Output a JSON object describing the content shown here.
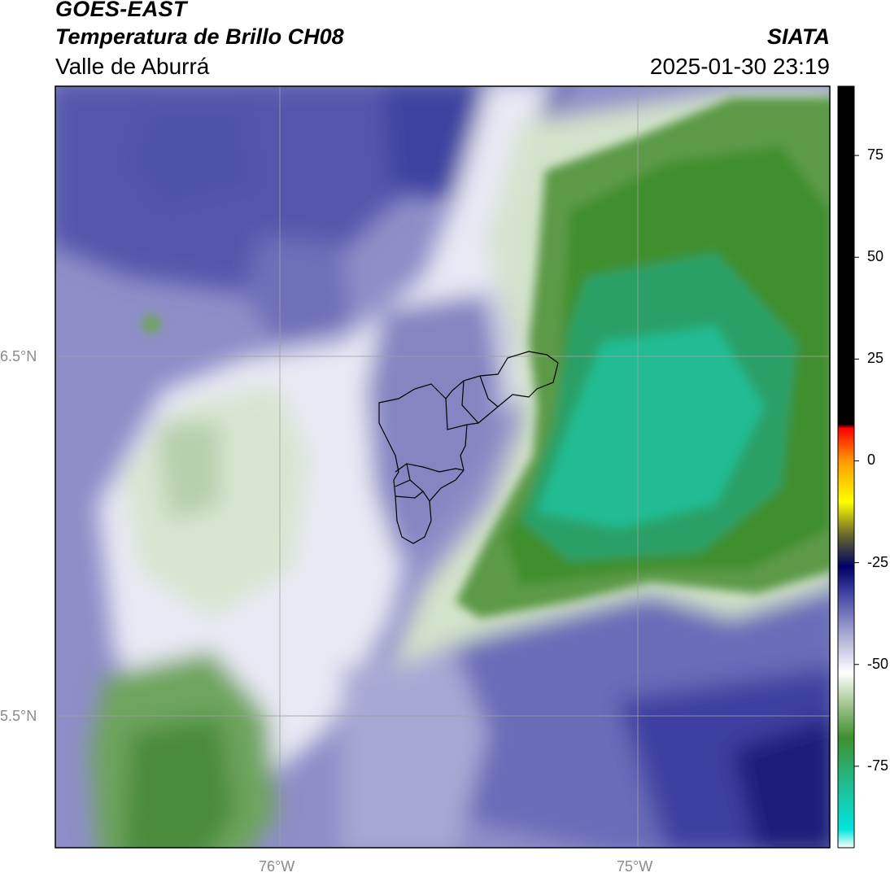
{
  "header": {
    "satellite": "GOES-EAST",
    "product": "Temperatura de Brillo CH08",
    "region": "Valle de Aburrá",
    "organization": "SIATA",
    "timestamp": "2025-01-30 23:19"
  },
  "axes": {
    "lat_ticks": [
      "6.5°N",
      "5.5°N"
    ],
    "lon_ticks": [
      "76°W",
      "75°W"
    ]
  },
  "colorbar": {
    "ticks": [
      "75",
      "50",
      "25",
      "0",
      "-25",
      "-50",
      "-75"
    ],
    "tick_values": [
      75,
      50,
      25,
      0,
      -25,
      -50,
      -75
    ],
    "range": [
      -95,
      92
    ],
    "stops": [
      {
        "v": -95,
        "c": "#ffffff"
      },
      {
        "v": -90.5,
        "c": "#00e5dd"
      },
      {
        "v": -80,
        "c": "#1fbf96"
      },
      {
        "v": -68,
        "c": "#3f8f2f"
      },
      {
        "v": -60,
        "c": "#9fc48c"
      },
      {
        "v": -52,
        "c": "#ffffff"
      },
      {
        "v": -42,
        "c": "#a3a3d0"
      },
      {
        "v": -32,
        "c": "#3b3f9f"
      },
      {
        "v": -26,
        "c": "#000066"
      },
      {
        "v": -18,
        "c": "#6b6b2a"
      },
      {
        "v": -10,
        "c": "#ffff00"
      },
      {
        "v": 0,
        "c": "#ff9900"
      },
      {
        "v": 8,
        "c": "#ff0000"
      },
      {
        "v": 9,
        "c": "#000000"
      },
      {
        "v": 92,
        "c": "#000000"
      }
    ]
  },
  "colors": {
    "deep_blue": "#1a1f7a",
    "mid_blue": "#4a4fa6",
    "light_lavender": "#b9b9dc",
    "white": "#ffffff",
    "pale_green": "#d6e4cf",
    "mid_green": "#4a8c3a",
    "dark_green": "#3b8a2c",
    "teal": "#1fbf96",
    "boundary": "#000000",
    "grid": "#a0a0a0"
  }
}
